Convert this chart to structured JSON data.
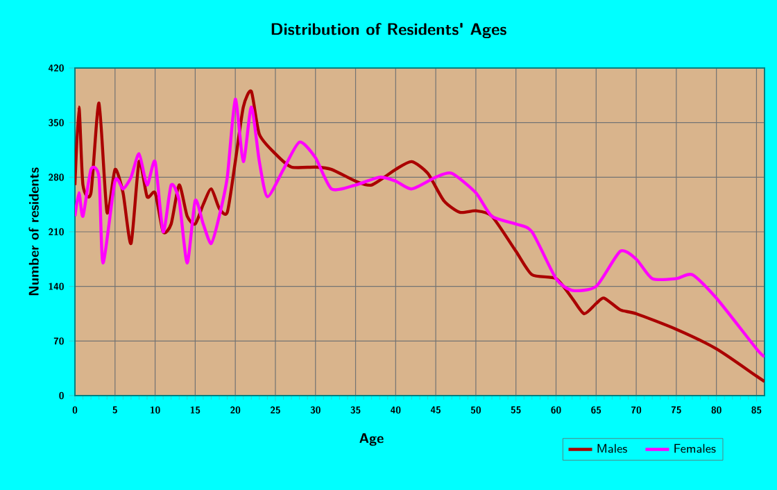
{
  "chart_data": {
    "type": "line",
    "title": "Distribution of Residents' Ages",
    "xlabel": "Age",
    "ylabel": "Number of residents",
    "xlim": [
      0,
      86
    ],
    "ylim": [
      0,
      420
    ],
    "xticks": [
      0,
      5,
      10,
      15,
      20,
      25,
      30,
      35,
      40,
      45,
      50,
      55,
      60,
      65,
      70,
      75,
      80,
      85
    ],
    "yticks": [
      0,
      70,
      140,
      210,
      280,
      350,
      420
    ],
    "grid": true,
    "legend": "bottom right",
    "marker": "none",
    "line_style": "solid",
    "series": [
      {
        "name": "Males",
        "color": "#aa0000",
        "x": [
          0,
          0.5,
          1,
          2,
          3,
          4,
          5,
          6,
          7,
          8,
          9,
          10,
          11,
          12,
          13,
          14,
          15,
          16,
          17,
          18,
          19,
          20,
          21,
          22,
          23,
          25,
          27,
          30,
          32,
          35,
          37,
          40,
          42,
          44,
          46,
          48,
          50,
          52,
          55,
          57,
          60,
          62,
          63.5,
          65,
          66,
          68,
          70,
          75,
          80,
          85,
          86
        ],
        "values": [
          270,
          370,
          270,
          260,
          375,
          235,
          290,
          260,
          195,
          300,
          255,
          260,
          210,
          220,
          270,
          230,
          220,
          245,
          265,
          240,
          235,
          300,
          370,
          390,
          335,
          310,
          293,
          293,
          290,
          275,
          270,
          290,
          300,
          285,
          250,
          235,
          237,
          230,
          185,
          155,
          150,
          125,
          105,
          118,
          125,
          110,
          105,
          85,
          60,
          25,
          18
        ]
      },
      {
        "name": "Females",
        "color": "#ff00ff",
        "x": [
          0,
          0.5,
          1,
          2,
          3,
          3.5,
          5,
          6,
          7,
          8,
          9,
          10,
          11,
          12,
          13,
          14,
          15,
          16,
          17,
          18,
          19,
          20,
          21,
          22,
          23,
          24,
          26,
          28,
          30,
          32,
          35,
          38,
          40,
          42,
          45,
          47,
          50,
          52,
          55,
          57,
          60,
          62,
          65,
          68,
          70,
          72,
          75,
          77,
          80,
          85,
          86
        ],
        "values": [
          230,
          260,
          230,
          290,
          280,
          170,
          275,
          265,
          280,
          310,
          270,
          300,
          210,
          270,
          250,
          170,
          250,
          220,
          195,
          230,
          280,
          380,
          300,
          370,
          300,
          255,
          290,
          325,
          305,
          265,
          270,
          280,
          275,
          265,
          280,
          285,
          260,
          230,
          220,
          210,
          150,
          135,
          140,
          185,
          175,
          150,
          150,
          155,
          125,
          60,
          50
        ]
      }
    ]
  }
}
